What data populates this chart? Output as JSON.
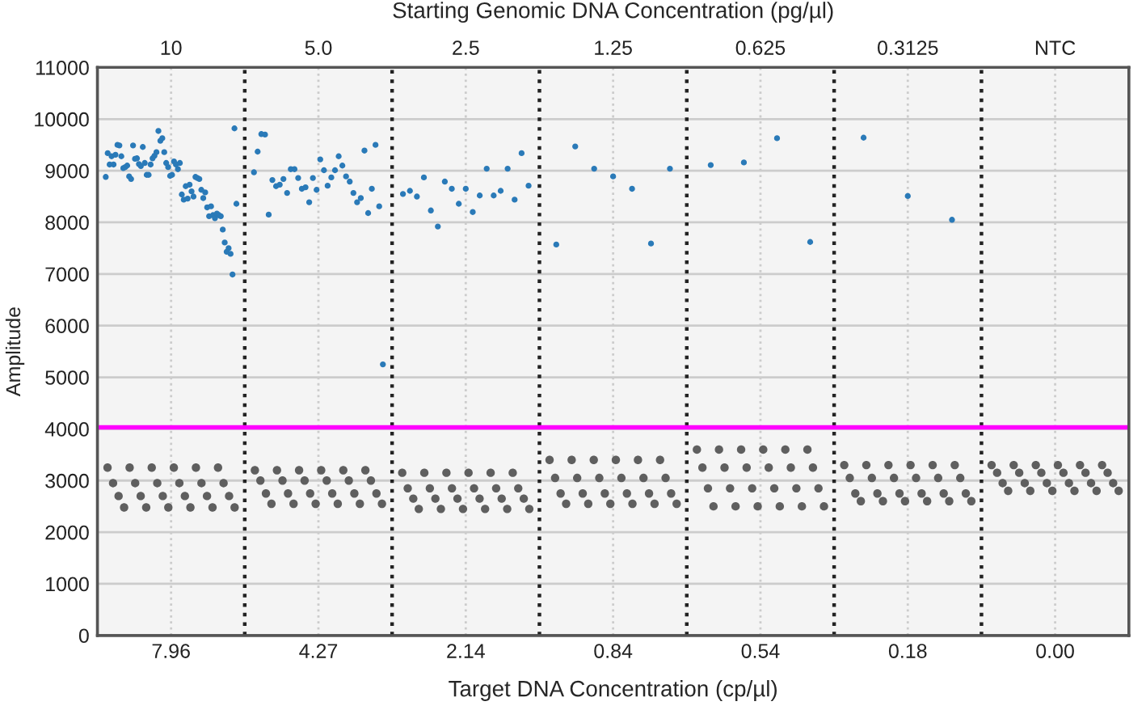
{
  "chart_data": {
    "type": "scatter",
    "xlabel": "Target DNA Concentration (cp/µl)",
    "x2label": "Starting Genomic DNA Concentration (pg/µl)",
    "ylabel": "Amplitude",
    "categories": [
      "7.96",
      "4.27",
      "2.14",
      "0.84",
      "0.54",
      "0.18",
      "0.00"
    ],
    "annotations": [
      "10",
      "5.0",
      "2.5",
      "1.25",
      "0.625",
      "0.3125",
      "NTC"
    ],
    "ylim": [
      0,
      11000
    ],
    "yticks": [
      0,
      1000,
      2000,
      3000,
      4000,
      5000,
      6000,
      7000,
      8000,
      9000,
      10000,
      11000
    ],
    "grid": true,
    "marker": "circle",
    "ref_lines": [
      {
        "axis": "y",
        "value": 4030,
        "color": "#ff00ff",
        "line_style": "solid"
      }
    ],
    "series": [
      {
        "color": "#5f5f5f",
        "x": [
          "7.96",
          "7.96",
          "7.96",
          "7.96",
          "7.96",
          "7.96",
          "7.96",
          "7.96",
          "7.96",
          "7.96",
          "7.96",
          "7.96",
          "7.96",
          "7.96",
          "7.96",
          "7.96",
          "7.96",
          "7.96",
          "7.96",
          "7.96",
          "7.96",
          "7.96",
          "7.96",
          "7.96",
          "4.27",
          "4.27",
          "4.27",
          "4.27",
          "4.27",
          "4.27",
          "4.27",
          "4.27",
          "4.27",
          "4.27",
          "4.27",
          "4.27",
          "4.27",
          "4.27",
          "4.27",
          "4.27",
          "4.27",
          "4.27",
          "4.27",
          "4.27",
          "4.27",
          "4.27",
          "4.27",
          "4.27",
          "2.14",
          "2.14",
          "2.14",
          "2.14",
          "2.14",
          "2.14",
          "2.14",
          "2.14",
          "2.14",
          "2.14",
          "2.14",
          "2.14",
          "2.14",
          "2.14",
          "2.14",
          "2.14",
          "2.14",
          "2.14",
          "2.14",
          "2.14",
          "2.14",
          "2.14",
          "2.14",
          "2.14",
          "0.84",
          "0.84",
          "0.84",
          "0.84",
          "0.84",
          "0.84",
          "0.84",
          "0.84",
          "0.84",
          "0.84",
          "0.84",
          "0.84",
          "0.84",
          "0.84",
          "0.84",
          "0.84",
          "0.84",
          "0.84",
          "0.84",
          "0.84",
          "0.84",
          "0.84",
          "0.84",
          "0.84",
          "0.54",
          "0.54",
          "0.54",
          "0.54",
          "0.54",
          "0.54",
          "0.54",
          "0.54",
          "0.54",
          "0.54",
          "0.54",
          "0.54",
          "0.54",
          "0.54",
          "0.54",
          "0.54",
          "0.54",
          "0.54",
          "0.54",
          "0.54",
          "0.54",
          "0.54",
          "0.54",
          "0.54",
          "0.18",
          "0.18",
          "0.18",
          "0.18",
          "0.18",
          "0.18",
          "0.18",
          "0.18",
          "0.18",
          "0.18",
          "0.18",
          "0.18",
          "0.18",
          "0.18",
          "0.18",
          "0.18",
          "0.18",
          "0.18",
          "0.18",
          "0.18",
          "0.18",
          "0.18",
          "0.18",
          "0.18",
          "0.00",
          "0.00",
          "0.00",
          "0.00",
          "0.00",
          "0.00",
          "0.00",
          "0.00",
          "0.00",
          "0.00",
          "0.00",
          "0.00",
          "0.00",
          "0.00",
          "0.00",
          "0.00",
          "0.00",
          "0.00",
          "0.00",
          "0.00",
          "0.00",
          "0.00",
          "0.00",
          "0.00"
        ],
        "values": [
          3250,
          2950,
          2700,
          2480,
          3250,
          2950,
          2700,
          2480,
          3250,
          2950,
          2700,
          2480,
          3250,
          2950,
          2700,
          2480,
          3250,
          2950,
          2700,
          2480,
          3250,
          2950,
          2700,
          2480,
          3200,
          3000,
          2750,
          2550,
          3200,
          3000,
          2750,
          2550,
          3200,
          3000,
          2750,
          2550,
          3200,
          3000,
          2750,
          2550,
          3200,
          3000,
          2750,
          2550,
          3200,
          3000,
          2750,
          2550,
          3150,
          2850,
          2650,
          2450,
          3150,
          2850,
          2650,
          2450,
          3150,
          2850,
          2650,
          2450,
          3150,
          2850,
          2650,
          2450,
          3150,
          2850,
          2650,
          2450,
          3150,
          2850,
          2650,
          2450,
          3400,
          3050,
          2750,
          2550,
          3400,
          3050,
          2750,
          2550,
          3400,
          3050,
          2750,
          2550,
          3400,
          3050,
          2750,
          2550,
          3400,
          3050,
          2750,
          2550,
          3400,
          3050,
          2750,
          2550,
          3600,
          3250,
          2850,
          2500,
          3600,
          3250,
          2850,
          2500,
          3600,
          3250,
          2850,
          2500,
          3600,
          3250,
          2850,
          2500,
          3600,
          3250,
          2850,
          2500,
          3600,
          3250,
          2850,
          2500,
          3300,
          3050,
          2750,
          2600,
          3300,
          3050,
          2750,
          2600,
          3300,
          3050,
          2750,
          2600,
          3300,
          3050,
          2750,
          2600,
          3300,
          3050,
          2750,
          2600,
          3300,
          3050,
          2750,
          2600,
          3300,
          3150,
          2950,
          2800,
          3300,
          3150,
          2950,
          2800,
          3300,
          3150,
          2950,
          2800,
          3300,
          3150,
          2950,
          2800,
          3300,
          3150,
          2950,
          2800,
          3300,
          3150,
          2950,
          2800
        ]
      },
      {
        "color": "#2a7ab8",
        "x": [
          "7.96",
          "7.96",
          "7.96",
          "7.96",
          "7.96",
          "7.96",
          "7.96",
          "7.96",
          "7.96",
          "7.96",
          "7.96",
          "7.96",
          "7.96",
          "7.96",
          "7.96",
          "7.96",
          "7.96",
          "7.96",
          "7.96",
          "7.96",
          "7.96",
          "7.96",
          "7.96",
          "7.96",
          "7.96",
          "7.96",
          "7.96",
          "7.96",
          "7.96",
          "7.96",
          "7.96",
          "7.96",
          "7.96",
          "7.96",
          "7.96",
          "7.96",
          "7.96",
          "7.96",
          "7.96",
          "7.96",
          "7.96",
          "7.96",
          "7.96",
          "7.96",
          "7.96",
          "7.96",
          "7.96",
          "7.96",
          "7.96",
          "7.96",
          "7.96",
          "7.96",
          "7.96",
          "7.96",
          "7.96",
          "7.96",
          "7.96",
          "7.96",
          "7.96",
          "7.96",
          "7.96",
          "7.96",
          "7.96",
          "7.96",
          "7.96",
          "7.96",
          "7.96",
          "7.96",
          "4.27",
          "4.27",
          "4.27",
          "4.27",
          "4.27",
          "4.27",
          "4.27",
          "4.27",
          "4.27",
          "4.27",
          "4.27",
          "4.27",
          "4.27",
          "4.27",
          "4.27",
          "4.27",
          "4.27",
          "4.27",
          "4.27",
          "4.27",
          "4.27",
          "4.27",
          "4.27",
          "4.27",
          "4.27",
          "4.27",
          "4.27",
          "4.27",
          "4.27",
          "4.27",
          "4.27",
          "4.27",
          "4.27",
          "4.27",
          "4.27",
          "4.27",
          "2.14",
          "2.14",
          "2.14",
          "2.14",
          "2.14",
          "2.14",
          "2.14",
          "2.14",
          "2.14",
          "2.14",
          "2.14",
          "2.14",
          "2.14",
          "2.14",
          "2.14",
          "2.14",
          "2.14",
          "2.14",
          "2.14",
          "0.84",
          "0.84",
          "0.84",
          "0.84",
          "0.84",
          "0.84",
          "0.84",
          "0.54",
          "0.54",
          "0.54",
          "0.54",
          "0.18",
          "0.18",
          "0.18"
        ],
        "values": [
          8880,
          9340,
          9120,
          9280,
          9120,
          9310,
          9500,
          9490,
          9280,
          9050,
          9070,
          9100,
          8890,
          8840,
          9490,
          9230,
          9240,
          9130,
          9090,
          9460,
          9150,
          8920,
          8920,
          9120,
          9240,
          9290,
          9360,
          9770,
          9580,
          9630,
          9360,
          9150,
          9070,
          8900,
          8920,
          9180,
          9120,
          9030,
          9150,
          8540,
          8440,
          8700,
          8460,
          8730,
          8600,
          8500,
          8880,
          8860,
          8840,
          8630,
          8470,
          8580,
          8290,
          8120,
          8310,
          8140,
          8080,
          8170,
          8140,
          8120,
          7860,
          7610,
          7430,
          7500,
          7390,
          6990,
          9820,
          8360,
          8970,
          9370,
          9710,
          9700,
          8150,
          8820,
          8700,
          8730,
          8840,
          8570,
          9030,
          9030,
          8860,
          8650,
          8680,
          8390,
          8860,
          8630,
          9220,
          9010,
          8710,
          8870,
          9010,
          9280,
          9100,
          8890,
          8790,
          8570,
          8390,
          8470,
          9390,
          8180,
          8650,
          9500,
          8310,
          5250,
          8550,
          8610,
          8500,
          8870,
          8230,
          7920,
          8790,
          8650,
          8360,
          8650,
          8200,
          8520,
          9040,
          8520,
          8610,
          9040,
          8440,
          9340,
          8710,
          7570,
          9470,
          9040,
          8890,
          8650,
          7590,
          9040,
          9110,
          9160,
          9630,
          7620,
          9640,
          8510,
          8050
        ]
      }
    ]
  }
}
